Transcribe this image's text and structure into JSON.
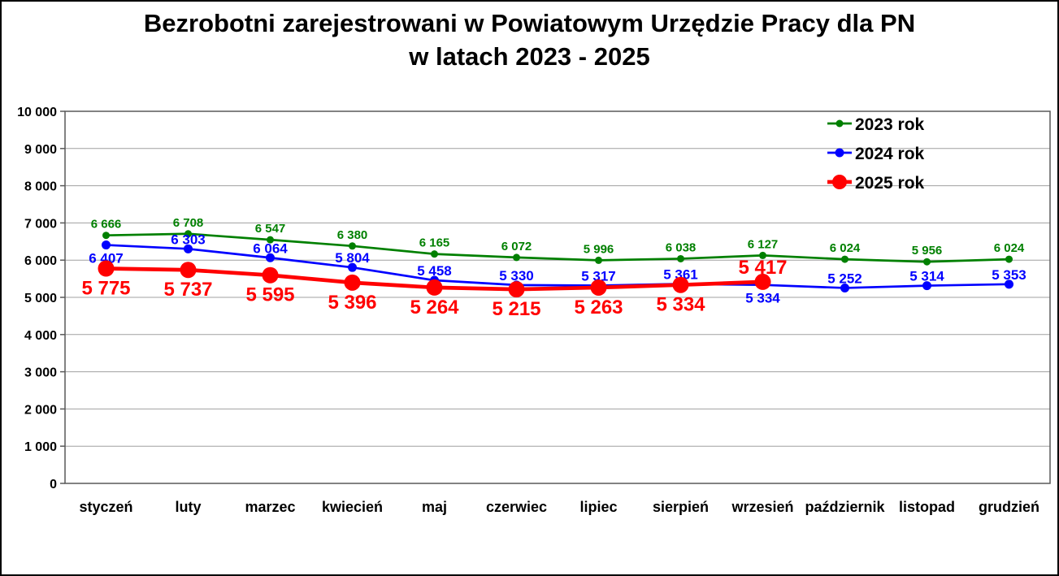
{
  "page": {
    "title_line1": "Bezrobotni zarejestrowani w Powiatowym Urzędzie Pracy dla PN",
    "title_line2": "w latach 2023 - 2025"
  },
  "chart_data": {
    "type": "line",
    "title": "Bezrobotni zarejestrowani w Powiatowym Urzędzie Pracy dla PN w latach 2023 - 2025",
    "xlabel": "",
    "ylabel": "",
    "ylim": [
      0,
      10000
    ],
    "ytick_step": 1000,
    "grid": true,
    "legend_position": "top-right-inside",
    "number_format": "space-thousands",
    "categories": [
      "styczeń",
      "luty",
      "marzec",
      "kwiecień",
      "maj",
      "czerwiec",
      "lipiec",
      "sierpień",
      "wrzesień",
      "październik",
      "listopad",
      "grudzień"
    ],
    "series": [
      {
        "name": "2023 rok",
        "color": "#008000",
        "line_width": 2.7,
        "marker_radius": 4.5,
        "label_font_size": 15,
        "values": [
          6666,
          6708,
          6547,
          6380,
          6165,
          6072,
          5996,
          6038,
          6127,
          6024,
          5956,
          6024
        ],
        "label_positions": [
          "above",
          "above",
          "above",
          "above",
          "above",
          "above",
          "above",
          "above",
          "above",
          "above",
          "above",
          "above"
        ]
      },
      {
        "name": "2024 rok",
        "color": "#0000FF",
        "line_width": 2.7,
        "marker_radius": 5.5,
        "label_font_size": 17,
        "values": [
          6407,
          6303,
          6064,
          5804,
          5458,
          5330,
          5317,
          5361,
          5334,
          5252,
          5314,
          5353
        ],
        "label_positions": [
          "below",
          "above",
          "above",
          "above",
          "above",
          "above",
          "above",
          "above",
          "below",
          "above",
          "above",
          "above"
        ]
      },
      {
        "name": "2025 rok",
        "color": "#FF0000",
        "line_width": 4.7,
        "marker_radius": 10,
        "label_font_size": 24,
        "values": [
          5775,
          5737,
          5595,
          5396,
          5264,
          5215,
          5263,
          5334,
          5417
        ],
        "label_positions": [
          "below",
          "below",
          "below",
          "below",
          "below",
          "below",
          "below",
          "below",
          "above"
        ]
      }
    ],
    "axis_colors": {
      "plot_border": "#595959",
      "gridline": "#A0A0A0",
      "tick_label": "#000000"
    }
  }
}
